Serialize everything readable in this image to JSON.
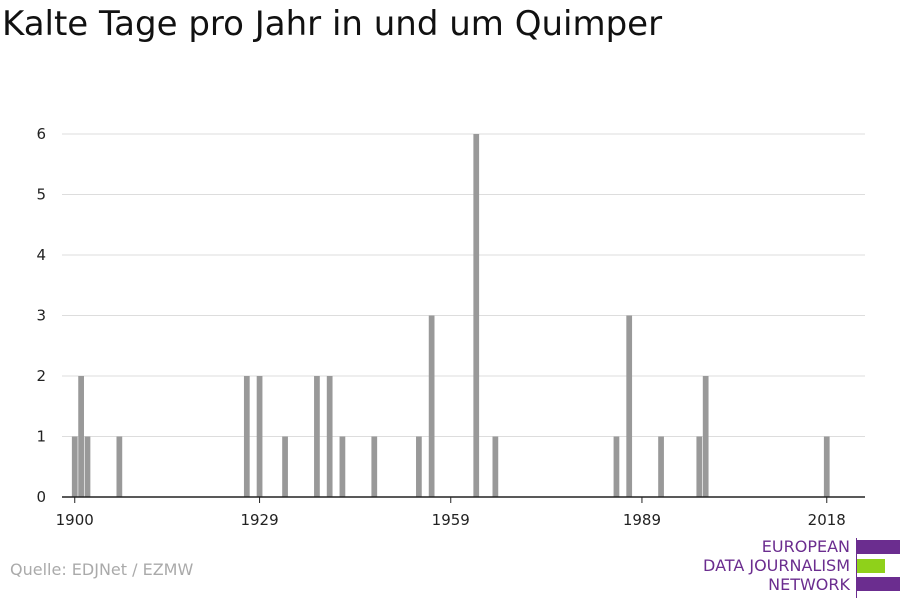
{
  "title": "Kalte Tage pro Jahr in und um Quimper",
  "source": "Quelle: EDJNet / EZMW",
  "logo": {
    "lines": [
      "EUROPEAN",
      "DATA JOURNALISM",
      "NETWORK"
    ],
    "colors": {
      "purple": "#6b2d8f",
      "green": "#8fd11a"
    }
  },
  "chart_data": {
    "type": "bar",
    "title": "Kalte Tage pro Jahr in und um Quimper",
    "xlabel": "",
    "ylabel": "",
    "xlim": [
      1898,
      2024
    ],
    "ylim": [
      0,
      6
    ],
    "xticks": [
      1900,
      1929,
      1959,
      1989,
      2018
    ],
    "yticks": [
      0,
      1,
      2,
      3,
      4,
      5,
      6
    ],
    "grid": true,
    "bar_color": "#999999",
    "x": [
      1900,
      1901,
      1902,
      1907,
      1927,
      1929,
      1933,
      1938,
      1940,
      1942,
      1947,
      1954,
      1956,
      1963,
      1966,
      1985,
      1987,
      1992,
      1998,
      1999,
      2018
    ],
    "values": [
      1,
      2,
      1,
      1,
      2,
      2,
      1,
      2,
      2,
      1,
      1,
      1,
      3,
      6,
      1,
      1,
      3,
      1,
      1,
      2,
      1
    ]
  }
}
